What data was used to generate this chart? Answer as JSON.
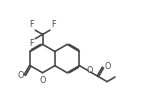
{
  "bg_color": "#ffffff",
  "line_color": "#444444",
  "lw": 1.15,
  "fs": 5.8,
  "figsize": [
    1.49,
    0.93
  ],
  "dpi": 100,
  "xlim": [
    0.0,
    10.5
  ],
  "ylim": [
    0.5,
    6.8
  ]
}
